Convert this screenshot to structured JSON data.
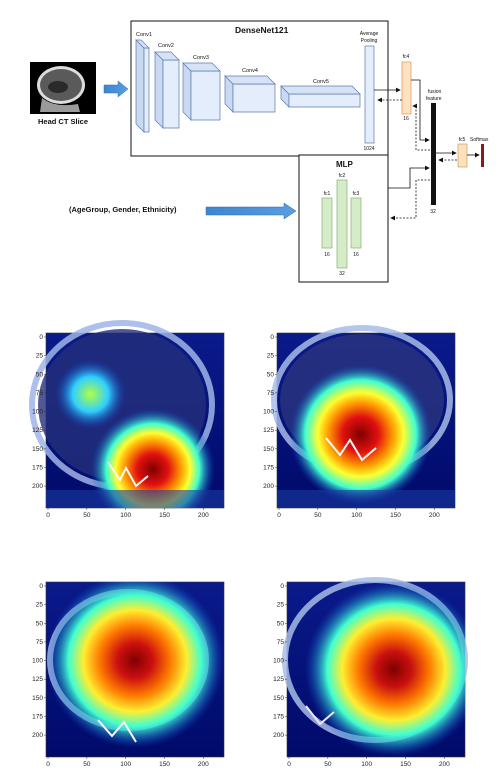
{
  "diagram": {
    "input_image_label": "Head CT Slice",
    "densenet_title": "DenseNet121",
    "conv_labels": [
      "Conv1",
      "Conv2",
      "Conv3",
      "Conv4",
      "Conv5"
    ],
    "avg_pool_label_1": "Average",
    "avg_pool_label_2": "Pooling",
    "avg_pool_dim": "1024",
    "fc4_label": "fc4",
    "fc4_dim": "16",
    "fusion_label_1": "fusion",
    "fusion_label_2": "feature",
    "fusion_dim": "32",
    "fc5_label": "fc5",
    "softmax_label": "Softmax",
    "mlp_title": "MLP",
    "fc1_label": "fc1",
    "fc1_dim": "16",
    "fc2_label": "fc2",
    "fc2_dim": "32",
    "fc3_label": "fc3",
    "fc3_dim": "16",
    "demographics_label": "(AgeGroup, Gender, Ethnicity)"
  },
  "heatmaps": {
    "y_ticks": [
      "0",
      "25",
      "50",
      "75",
      "100",
      "125",
      "150",
      "175",
      "200"
    ],
    "x_ticks": [
      "0",
      "50",
      "100",
      "150",
      "200"
    ],
    "colormap": [
      "#00007f",
      "#0066ff",
      "#00ffff",
      "#ffff00",
      "#ff4000",
      "#800000"
    ],
    "panels": [
      {
        "id": "top-left"
      },
      {
        "id": "top-right"
      },
      {
        "id": "bottom-left"
      },
      {
        "id": "bottom-right"
      }
    ]
  }
}
